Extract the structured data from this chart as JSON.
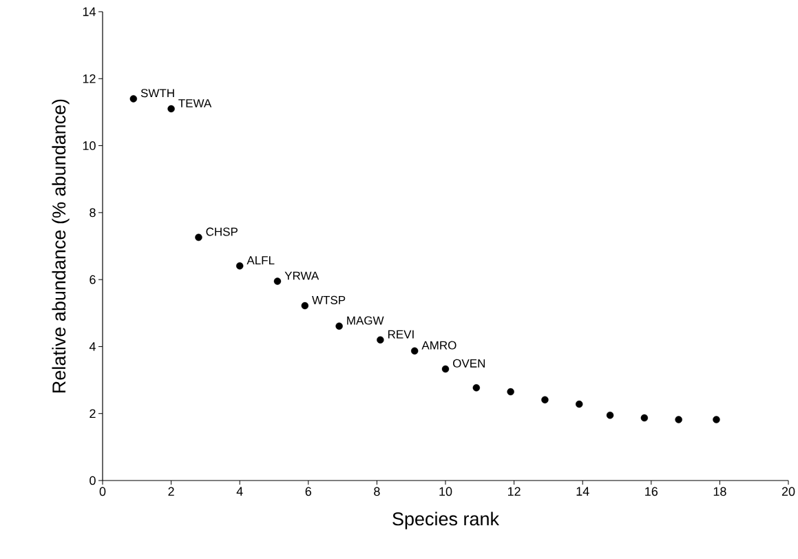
{
  "chart_data": {
    "type": "scatter",
    "xlabel": "Species rank",
    "ylabel": "Relative abundance (% abundance)",
    "x": [
      0.9,
      2.0,
      2.8,
      4.0,
      5.1,
      5.9,
      6.9,
      8.1,
      9.1,
      10.0,
      10.9,
      11.9,
      12.9,
      13.9,
      14.8,
      15.8,
      16.8,
      17.9
    ],
    "values": [
      11.4,
      11.1,
      7.26,
      6.41,
      5.95,
      5.22,
      4.61,
      4.2,
      3.87,
      3.33,
      2.77,
      2.65,
      2.41,
      2.28,
      1.95,
      1.87,
      1.82,
      1.82
    ],
    "color": "#000000",
    "marker": "circle",
    "xlim": [
      0,
      20
    ],
    "ylim": [
      0,
      14
    ],
    "xticks": [
      0,
      2,
      4,
      6,
      8,
      10,
      12,
      14,
      16,
      18,
      20
    ],
    "yticks": [
      0,
      2,
      4,
      6,
      8,
      10,
      12,
      14
    ],
    "annotations": [
      {
        "text": "SWTH",
        "x": 0.9,
        "y": 11.4
      },
      {
        "text": "TEWA",
        "x": 2.0,
        "y": 11.1
      },
      {
        "text": "CHSP",
        "x": 2.8,
        "y": 7.26
      },
      {
        "text": "ALFL",
        "x": 4.0,
        "y": 6.41
      },
      {
        "text": "YRWA",
        "x": 5.1,
        "y": 5.95
      },
      {
        "text": "WTSP",
        "x": 5.9,
        "y": 5.22
      },
      {
        "text": "MAGW",
        "x": 6.9,
        "y": 4.61
      },
      {
        "text": "REVI",
        "x": 8.1,
        "y": 4.2
      },
      {
        "text": "AMRO",
        "x": 9.1,
        "y": 3.87
      },
      {
        "text": "OVEN",
        "x": 10.0,
        "y": 3.33
      }
    ]
  }
}
